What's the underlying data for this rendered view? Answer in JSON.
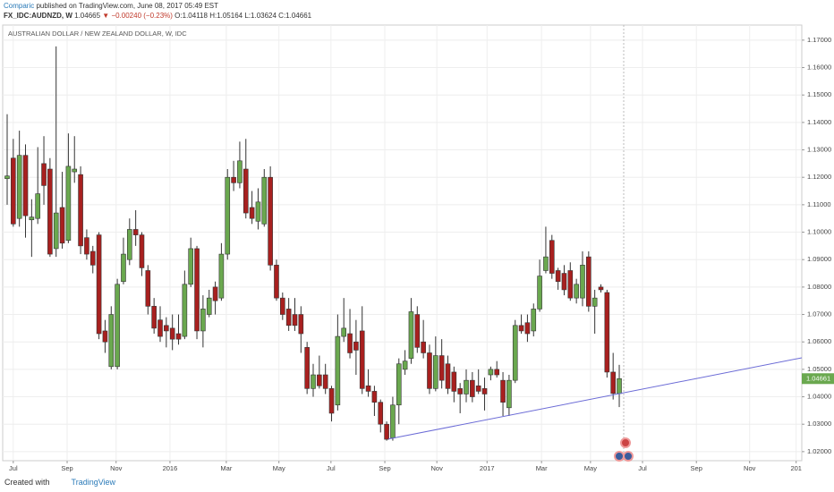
{
  "header": {
    "publisher": "Comparic",
    "published_text": "published on TradingView.com, June 08, 2017 05:49 EST",
    "symbol": "FX_IDC:AUDNZD, W",
    "price": "1.04665",
    "direction": "▼",
    "change": "−0.00240 (−0.23%)",
    "open": "O:1.04118",
    "high": "H:1.05164",
    "low": "L:1.03624",
    "close": "C:1.04661"
  },
  "footer": {
    "created_with": "Created with",
    "brand": "TradingView"
  },
  "chart_data": {
    "type": "candlestick",
    "title": "AUSTRALIAN DOLLAR / NEW ZEALAND DOLLAR, W, IDC",
    "up_color": "#6aa84f",
    "down_color": "#a8201f",
    "grid": true,
    "xlim": [
      -0.73,
      129.82
    ],
    "ylim": [
      1.0167,
      1.1755
    ],
    "xticks": [
      {
        "value": 1.0,
        "label": "Jul"
      },
      {
        "value": 9.8,
        "label": "Sep"
      },
      {
        "value": 17.8,
        "label": "Nov"
      },
      {
        "value": 26.6,
        "label": "2016"
      },
      {
        "value": 35.8,
        "label": "Mar"
      },
      {
        "value": 44.4,
        "label": "May"
      },
      {
        "value": 52.9,
        "label": "Jul"
      },
      {
        "value": 61.7,
        "label": "Sep"
      },
      {
        "value": 70.2,
        "label": "Nov"
      },
      {
        "value": 78.4,
        "label": "2017"
      },
      {
        "value": 87.3,
        "label": "Mar"
      },
      {
        "value": 95.3,
        "label": "May"
      },
      {
        "value": 103.8,
        "label": "Jul"
      },
      {
        "value": 112.6,
        "label": "Sep"
      },
      {
        "value": 121.3,
        "label": "Nov"
      },
      {
        "value": 128.9,
        "label": "201"
      }
    ],
    "yticks": [
      {
        "value": 1.02,
        "label": "1.02000"
      },
      {
        "value": 1.03,
        "label": "1.03000"
      },
      {
        "value": 1.04,
        "label": "1.04000"
      },
      {
        "value": 1.05,
        "label": "1.05000"
      },
      {
        "value": 1.06,
        "label": "1.06000"
      },
      {
        "value": 1.07,
        "label": "1.07000"
      },
      {
        "value": 1.08,
        "label": "1.08000"
      },
      {
        "value": 1.09,
        "label": "1.09000"
      },
      {
        "value": 1.1,
        "label": "1.10000"
      },
      {
        "value": 1.11,
        "label": "1.11000"
      },
      {
        "value": 1.12,
        "label": "1.12000"
      },
      {
        "value": 1.13,
        "label": "1.13000"
      },
      {
        "value": 1.14,
        "label": "1.14000"
      },
      {
        "value": 1.15,
        "label": "1.15000"
      },
      {
        "value": 1.16,
        "label": "1.16000"
      },
      {
        "value": 1.17,
        "label": "1.17000"
      }
    ],
    "ohlc": [
      [
        1.1195,
        1.143,
        1.11,
        1.1205
      ],
      [
        1.127,
        1.134,
        1.102,
        1.103
      ],
      [
        1.105,
        1.137,
        1.102,
        1.128
      ],
      [
        1.128,
        1.132,
        1.098,
        1.106
      ],
      [
        1.1045,
        1.112,
        1.091,
        1.1055
      ],
      [
        1.105,
        1.131,
        1.103,
        1.114
      ],
      [
        1.125,
        1.135,
        1.11,
        1.117
      ],
      [
        1.123,
        1.127,
        1.091,
        1.092
      ],
      [
        1.094,
        1.1677,
        1.091,
        1.107
      ],
      [
        1.109,
        1.122,
        1.094,
        1.096
      ],
      [
        1.097,
        1.136,
        1.096,
        1.124
      ],
      [
        1.122,
        1.135,
        1.118,
        1.123
      ],
      [
        1.121,
        1.124,
        1.092,
        1.095
      ],
      [
        1.098,
        1.101,
        1.09,
        1.092
      ],
      [
        1.093,
        1.095,
        1.085,
        1.088
      ],
      [
        1.099,
        1.1,
        1.061,
        1.063
      ],
      [
        1.064,
        1.068,
        1.056,
        1.06
      ],
      [
        1.051,
        1.073,
        1.05,
        1.07
      ],
      [
        1.051,
        1.083,
        1.05,
        1.081
      ],
      [
        1.082,
        1.098,
        1.081,
        1.092
      ],
      [
        1.09,
        1.105,
        1.088,
        1.101
      ],
      [
        1.101,
        1.108,
        1.095,
        1.099
      ],
      [
        1.099,
        1.1,
        1.084,
        1.087
      ],
      [
        1.086,
        1.088,
        1.07,
        1.073
      ],
      [
        1.073,
        1.076,
        1.063,
        1.065
      ],
      [
        1.068,
        1.073,
        1.06,
        1.062
      ],
      [
        1.066,
        1.069,
        1.058,
        1.064
      ],
      [
        1.065,
        1.07,
        1.057,
        1.061
      ],
      [
        1.063,
        1.07,
        1.059,
        1.061
      ],
      [
        1.062,
        1.086,
        1.061,
        1.081
      ],
      [
        1.081,
        1.098,
        1.08,
        1.094
      ],
      [
        1.094,
        1.095,
        1.061,
        1.064
      ],
      [
        1.064,
        1.077,
        1.058,
        1.072
      ],
      [
        1.07,
        1.079,
        1.069,
        1.076
      ],
      [
        1.08,
        1.082,
        1.07,
        1.075
      ],
      [
        1.076,
        1.096,
        1.075,
        1.092
      ],
      [
        1.092,
        1.123,
        1.09,
        1.12
      ],
      [
        1.12,
        1.126,
        1.115,
        1.118
      ],
      [
        1.118,
        1.133,
        1.116,
        1.126
      ],
      [
        1.123,
        1.134,
        1.105,
        1.107
      ],
      [
        1.109,
        1.115,
        1.103,
        1.105
      ],
      [
        1.104,
        1.116,
        1.101,
        1.111
      ],
      [
        1.103,
        1.123,
        1.102,
        1.12
      ],
      [
        1.12,
        1.124,
        1.086,
        1.088
      ],
      [
        1.088,
        1.09,
        1.075,
        1.076
      ],
      [
        1.076,
        1.078,
        1.068,
        1.07
      ],
      [
        1.072,
        1.076,
        1.064,
        1.066
      ],
      [
        1.07,
        1.076,
        1.064,
        1.066
      ],
      [
        1.07,
        1.073,
        1.056,
        1.063
      ],
      [
        1.058,
        1.06,
        1.041,
        1.043
      ],
      [
        1.043,
        1.052,
        1.04,
        1.048
      ],
      [
        1.048,
        1.055,
        1.043,
        1.044
      ],
      [
        1.048,
        1.052,
        1.041,
        1.043
      ],
      [
        1.043,
        1.044,
        1.031,
        1.034
      ],
      [
        1.037,
        1.07,
        1.035,
        1.062
      ],
      [
        1.062,
        1.076,
        1.06,
        1.065
      ],
      [
        1.063,
        1.072,
        1.054,
        1.056
      ],
      [
        1.06,
        1.068,
        1.048,
        1.057
      ],
      [
        1.064,
        1.073,
        1.041,
        1.043
      ],
      [
        1.044,
        1.05,
        1.04,
        1.042
      ],
      [
        1.042,
        1.044,
        1.033,
        1.038
      ],
      [
        1.038,
        1.039,
        1.027,
        1.03
      ],
      [
        1.03,
        1.031,
        1.024,
        1.0245
      ],
      [
        1.025,
        1.04,
        1.024,
        1.037
      ],
      [
        1.037,
        1.054,
        1.03,
        1.052
      ],
      [
        1.05,
        1.057,
        1.048,
        1.053
      ],
      [
        1.054,
        1.076,
        1.052,
        1.071
      ],
      [
        1.07,
        1.073,
        1.056,
        1.058
      ],
      [
        1.06,
        1.068,
        1.054,
        1.056
      ],
      [
        1.056,
        1.059,
        1.041,
        1.043
      ],
      [
        1.043,
        1.062,
        1.042,
        1.055
      ],
      [
        1.055,
        1.061,
        1.043,
        1.046
      ],
      [
        1.052,
        1.055,
        1.041,
        1.043
      ],
      [
        1.049,
        1.051,
        1.038,
        1.042
      ],
      [
        1.043,
        1.045,
        1.034,
        1.041
      ],
      [
        1.041,
        1.05,
        1.038,
        1.046
      ],
      [
        1.046,
        1.049,
        1.038,
        1.04
      ],
      [
        1.044,
        1.05,
        1.041,
        1.042
      ],
      [
        1.043,
        1.047,
        1.035,
        1.041
      ],
      [
        1.048,
        1.051,
        1.046,
        1.05
      ],
      [
        1.05,
        1.053,
        1.047,
        1.048
      ],
      [
        1.046,
        1.049,
        1.033,
        1.038
      ],
      [
        1.036,
        1.048,
        1.033,
        1.046
      ],
      [
        1.046,
        1.068,
        1.045,
        1.066
      ],
      [
        1.066,
        1.07,
        1.063,
        1.064
      ],
      [
        1.067,
        1.07,
        1.06,
        1.063
      ],
      [
        1.064,
        1.074,
        1.062,
        1.072
      ],
      [
        1.072,
        1.09,
        1.071,
        1.084
      ],
      [
        1.086,
        1.102,
        1.085,
        1.091
      ],
      [
        1.097,
        1.099,
        1.083,
        1.085
      ],
      [
        1.086,
        1.087,
        1.079,
        1.082
      ],
      [
        1.085,
        1.088,
        1.077,
        1.079
      ],
      [
        1.086,
        1.089,
        1.075,
        1.076
      ],
      [
        1.076,
        1.083,
        1.074,
        1.081
      ],
      [
        1.076,
        1.093,
        1.073,
        1.088
      ],
      [
        1.091,
        1.093,
        1.071,
        1.073
      ],
      [
        1.073,
        1.079,
        1.063,
        1.076
      ],
      [
        1.08,
        1.081,
        1.078,
        1.079
      ],
      [
        1.078,
        1.079,
        1.047,
        1.049
      ],
      [
        1.049,
        1.056,
        1.039,
        1.0412
      ],
      [
        1.04118,
        1.05164,
        1.03624,
        1.04661
      ]
    ],
    "trendline": {
      "color": "#6b6bd6",
      "x": [
        62.3,
        129.82
      ],
      "y": [
        1.0246,
        1.0542
      ]
    }
  }
}
